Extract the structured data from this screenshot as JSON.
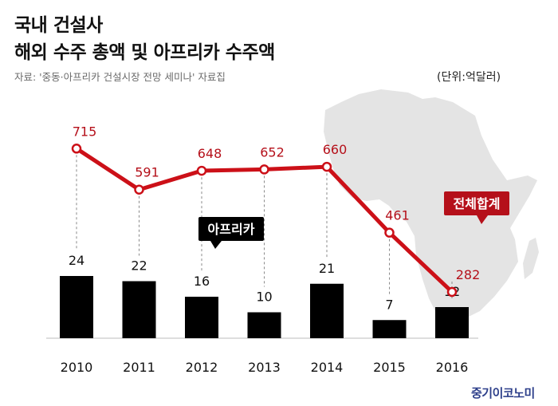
{
  "header": {
    "title_line1": "국내 건설사",
    "title_line2": "해외 수주 총액 및 아프리카 수주액",
    "source": "자료: '중동·아프리카 건설시장 전망 세미나' 자료집",
    "unit": "(단위:억달러)"
  },
  "brand": "중기이코노미",
  "colors": {
    "line": "#cc1018",
    "bar": "#000000",
    "map": "#e4e4e4",
    "label_red": "#b5101a"
  },
  "chart_data": {
    "type": "bar+line",
    "categories": [
      "2010",
      "2011",
      "2012",
      "2013",
      "2014",
      "2015",
      "2016"
    ],
    "series": [
      {
        "name": "아프리카",
        "type": "bar",
        "values": [
          24,
          22,
          16,
          10,
          21,
          7,
          12
        ]
      },
      {
        "name": "전체합계",
        "type": "line",
        "values": [
          715,
          591,
          648,
          652,
          660,
          461,
          282
        ]
      }
    ],
    "title": "국내 건설사 해외 수주 총액 및 아프리카 수주액",
    "unit": "억달러",
    "legend": [
      {
        "label": "아프리카",
        "style": "black-callout"
      },
      {
        "label": "전체합계",
        "style": "red-callout"
      }
    ]
  }
}
